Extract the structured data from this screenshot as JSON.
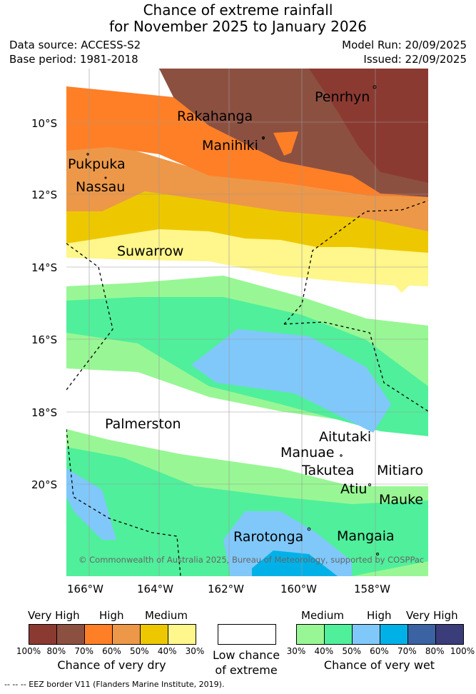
{
  "header": {
    "title_line1": "Chance of extreme rainfall",
    "title_line2": "for November 2025 to January 2026",
    "data_source": "Data source: ACCESS-S2",
    "base_period": "Base period: 1981-2018",
    "model_run": "Model Run: 20/09/2025",
    "issued": "Issued: 22/09/2025"
  },
  "map": {
    "lat_ticks": [
      "10°S",
      "12°S",
      "14°S",
      "16°S",
      "18°S",
      "20°S"
    ],
    "lon_ticks": [
      "166°W",
      "164°W",
      "162°W",
      "160°W",
      "158°W"
    ],
    "places": {
      "penrhyn": "Penrhyn",
      "rakahanga": "Rakahanga",
      "manihiki": "Manihiki",
      "pukapuka": "Pukpuka",
      "nassau": "Nassau",
      "suwarrow": "Suwarrow",
      "palmerston": "Palmerston",
      "aitutaki": "Aitutaki",
      "manuae": "Manuae",
      "takutea": "Takutea",
      "mitiaro": "Mitiaro",
      "atiu": "Atiu",
      "mauke": "Mauke",
      "rarotonga": "Rarotonga",
      "mangaia": "Mangaia"
    },
    "copyright": "© Commonwealth of Australia 2025, Bureau of Meteorology, supported by COSPPac"
  },
  "legend": {
    "dry": {
      "headers": [
        "Very High",
        "High",
        "Medium"
      ],
      "colors": [
        "#8b3a32",
        "#8c5041",
        "#ff7f27",
        "#ed9848",
        "#edc800",
        "#fff68c"
      ],
      "pcts": [
        "100%",
        "80%",
        "70%",
        "60%",
        "50%",
        "40%",
        "30%"
      ],
      "caption": "Chance of very dry"
    },
    "neutral": {
      "caption_line1": "Low chance",
      "caption_line2": "of extreme",
      "color": "#ffffff"
    },
    "wet": {
      "headers": [
        "Medium",
        "High",
        "Very High"
      ],
      "colors": [
        "#98f794",
        "#50ef9b",
        "#80c8fa",
        "#00b1e8",
        "#3b63a3",
        "#3b3d7a"
      ],
      "pcts": [
        "30%",
        "40%",
        "50%",
        "60%",
        "70%",
        "80%",
        "100%"
      ],
      "caption": "Chance of very wet"
    }
  },
  "footer": {
    "eez_note": "-- -- -- EEZ border V11 (Flanders Marine Institute, 2019)."
  }
}
